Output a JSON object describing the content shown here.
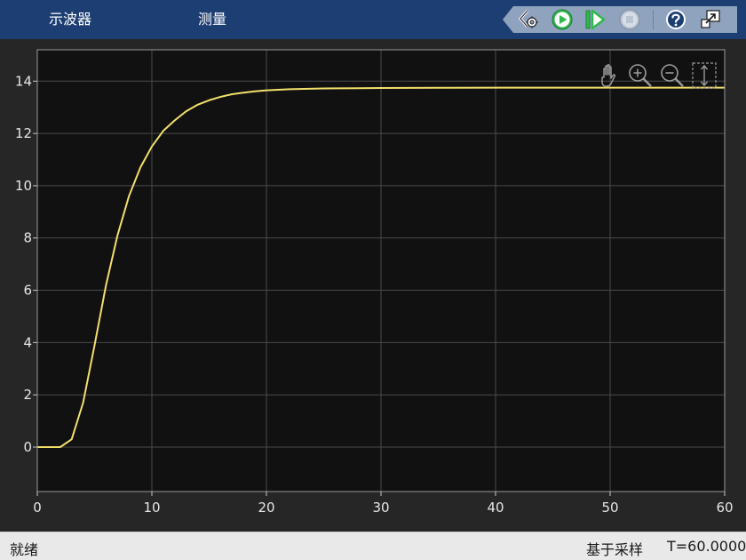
{
  "tabs": [
    {
      "label": "示波器"
    },
    {
      "label": "测量"
    }
  ],
  "toolstrip": {
    "icons": [
      "settings-icon",
      "run-icon",
      "step-forward-icon",
      "stop-icon",
      "help-icon",
      "undock-icon"
    ],
    "colors": {
      "run": "#2fb84b",
      "stop_disabled": "#b9c3d1",
      "help_bg": "#1d3e72"
    }
  },
  "axes_toolbar": {
    "icons": [
      "pan-hand-icon",
      "zoom-in-icon",
      "zoom-out-icon",
      "autoscale-icon"
    ]
  },
  "status": {
    "left": "就绪",
    "sample_mode": "基于采样",
    "time": "T=60.0000"
  },
  "colors": {
    "header_bg": "#1d3e72",
    "plot_bg": "#111111",
    "panel_bg": "#262626",
    "grid": "#4a4a4a",
    "trace": "#f2e06b"
  },
  "chart_data": {
    "type": "line",
    "title": "",
    "xlabel": "",
    "ylabel": "",
    "xlim": [
      0,
      60
    ],
    "ylim": [
      -1.7,
      15.2
    ],
    "xticks": [
      0,
      10,
      20,
      30,
      40,
      50,
      60
    ],
    "yticks": [
      0,
      2,
      4,
      6,
      8,
      10,
      12,
      14
    ],
    "grid": true,
    "series": [
      {
        "color": "#f2e06b",
        "x": [
          0,
          2,
          3,
          4,
          5,
          6,
          7,
          8,
          9,
          10,
          11,
          12,
          13,
          14,
          15,
          16,
          17,
          18,
          19,
          20,
          22,
          25,
          28,
          30,
          35,
          40,
          50,
          60
        ],
        "y": [
          0,
          0,
          0.3,
          1.7,
          3.9,
          6.2,
          8.1,
          9.6,
          10.7,
          11.5,
          12.1,
          12.5,
          12.85,
          13.1,
          13.27,
          13.4,
          13.5,
          13.56,
          13.61,
          13.65,
          13.69,
          13.72,
          13.73,
          13.74,
          13.745,
          13.75,
          13.75,
          13.75
        ]
      }
    ]
  }
}
